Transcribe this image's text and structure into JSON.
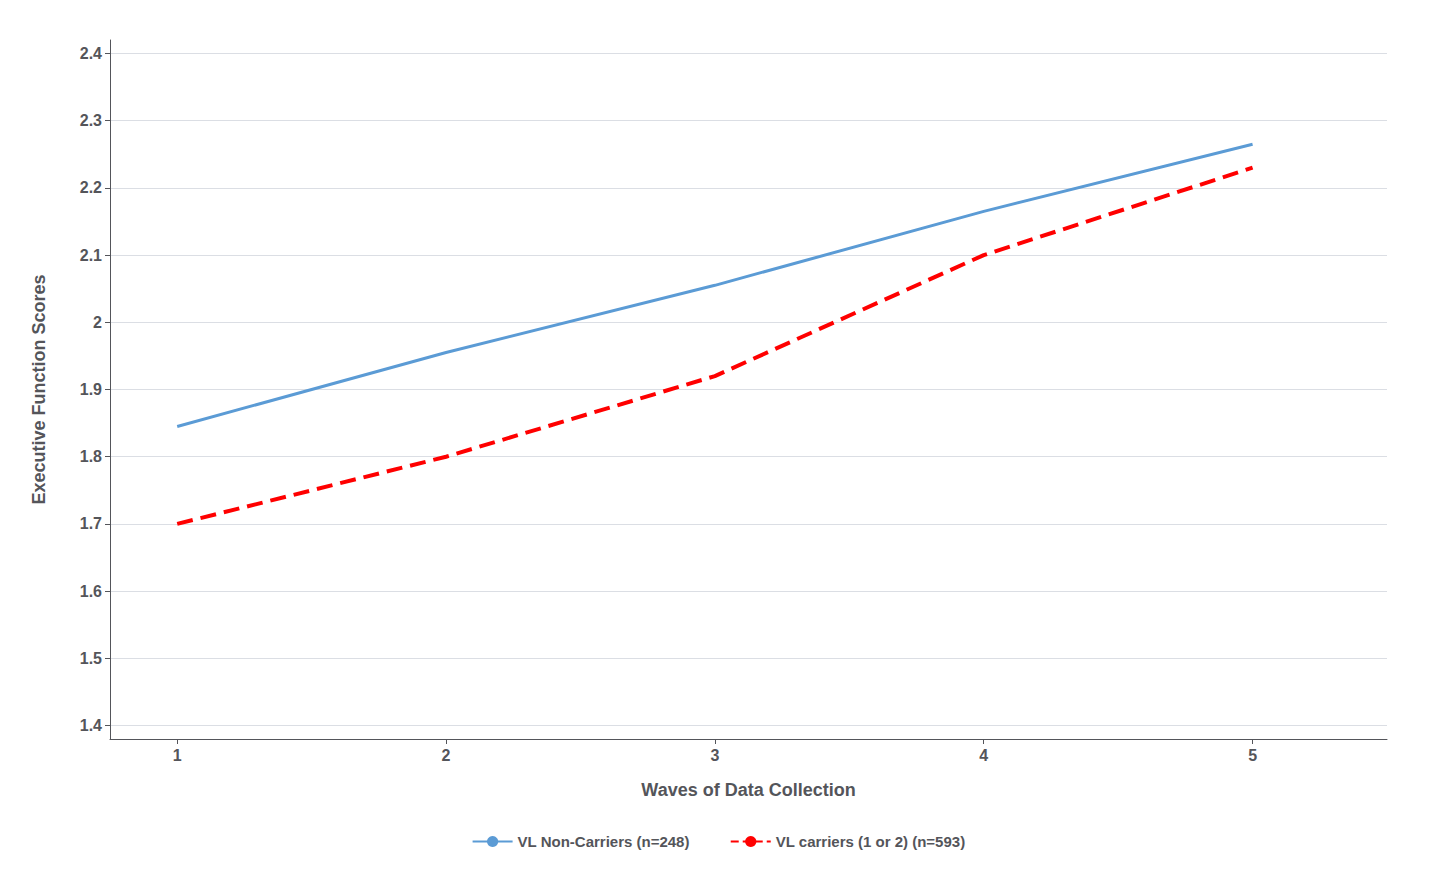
{
  "chart_data": {
    "type": "line",
    "xlabel": "Waves of Data Collection",
    "ylabel": "Executive Function Scores",
    "x": [
      1,
      2,
      3,
      4,
      5
    ],
    "series": [
      {
        "name": "VL Non-Carriers (n=248)",
        "color": "#5b9bd5",
        "line_style": "solid",
        "values": [
          1.845,
          1.955,
          2.055,
          2.165,
          2.265
        ]
      },
      {
        "name": "VL carriers (1 or 2) (n=593)",
        "color": "#ff0000",
        "line_style": "dashed",
        "values": [
          1.7,
          1.8,
          1.92,
          2.1,
          2.23
        ]
      }
    ],
    "xlim": [
      0.75,
      5.5
    ],
    "ylim": [
      1.38,
      2.42
    ],
    "xticks": [
      1,
      2,
      3,
      4,
      5
    ],
    "yticks": [
      1.4,
      1.5,
      1.6,
      1.7,
      1.8,
      1.9,
      2,
      2.1,
      2.2,
      2.3,
      2.4
    ],
    "grid": true,
    "legend": "bottom"
  }
}
